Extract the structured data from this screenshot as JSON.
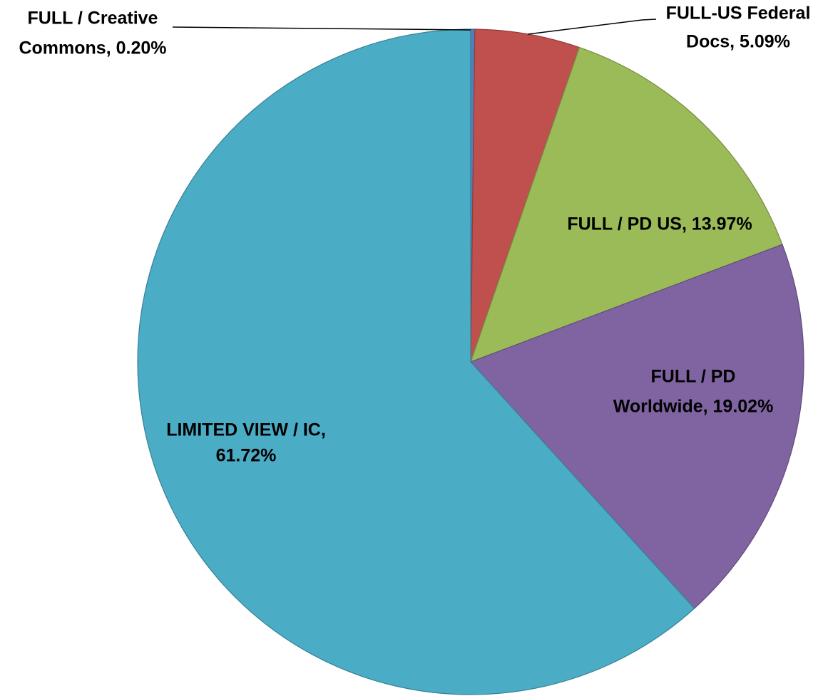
{
  "chart_data": {
    "type": "pie",
    "values": [
      0.2,
      5.09,
      13.97,
      19.02,
      61.72
    ],
    "value_labels": [
      [
        "FULL / Creative",
        "Commons, 0.20%"
      ],
      [
        "FULL-US Federal",
        "Docs, 5.09%"
      ],
      [
        "FULL / PD US, 13.97%"
      ],
      [
        "FULL / PD",
        "Worldwide, 19.02%"
      ],
      [
        "LIMITED VIEW / IC,",
        "61.72%"
      ]
    ],
    "colors": [
      "#4f81bd",
      "#c0504d",
      "#9bbb59",
      "#8064a2",
      "#4bacc6"
    ]
  }
}
